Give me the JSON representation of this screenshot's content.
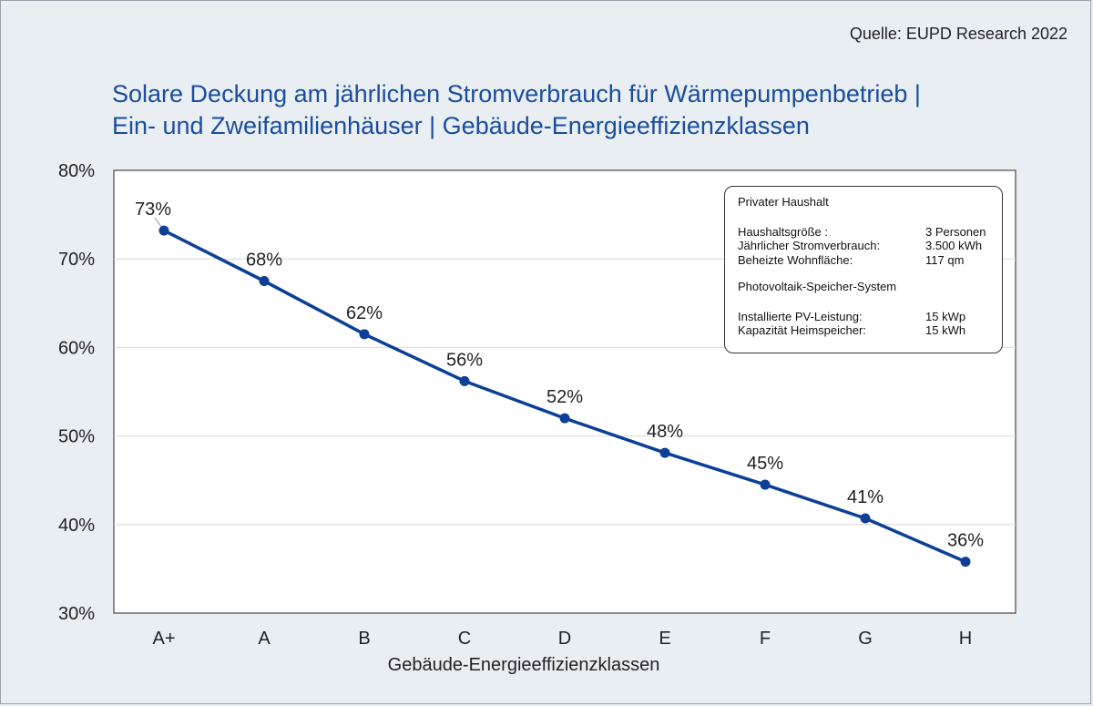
{
  "source": "Quelle: EUPD Research 2022",
  "title_lines": [
    "Solare Deckung am jährlichen Stromverbrauch für Wärmepumpenbetrieb |",
    "Ein- und Zweifamilienhäuser | Gebäude-Energieeffizienzklassen"
  ],
  "info_box": {
    "heading": "Privater Haushalt",
    "household": [
      {
        "key": "Haushaltsgröße    :",
        "value": "3 Personen"
      },
      {
        "key": "Jährlicher Stromverbrauch:",
        "value": "3.500 kWh"
      },
      {
        "key": "Beheizte Wohnfläche:",
        "value": "117 qm"
      }
    ],
    "heading2": "Photovoltaik-Speicher-System",
    "system": [
      {
        "key": "Installierte PV-Leistung:",
        "value": "15 kWp"
      },
      {
        "key": "Kapazität Heimspeicher:",
        "value": "15 kWh"
      }
    ]
  },
  "colors": {
    "line": "#0d3f97",
    "title": "#1a4d9c",
    "background": "#e9eef3",
    "plot_bg": "#ffffff",
    "grid": "#d9d9d9"
  },
  "chart_data": {
    "type": "line",
    "categories": [
      "A+",
      "A",
      "B",
      "C",
      "D",
      "E",
      "F",
      "G",
      "H"
    ],
    "values": [
      73.2,
      67.5,
      61.5,
      56.2,
      52.0,
      48.1,
      44.5,
      40.7,
      35.8
    ],
    "data_labels": [
      "73%",
      "68%",
      "62%",
      "56%",
      "52%",
      "48%",
      "45%",
      "41%",
      "36%"
    ],
    "xlabel": "Gebäude-Energieeffizienzklassen",
    "ylabel": "",
    "ylim": [
      30,
      80
    ],
    "yticks": [
      30,
      40,
      50,
      60,
      70,
      80
    ],
    "ytick_labels": [
      "30%",
      "40%",
      "50%",
      "60%",
      "70%",
      "80%"
    ],
    "grid": true
  }
}
